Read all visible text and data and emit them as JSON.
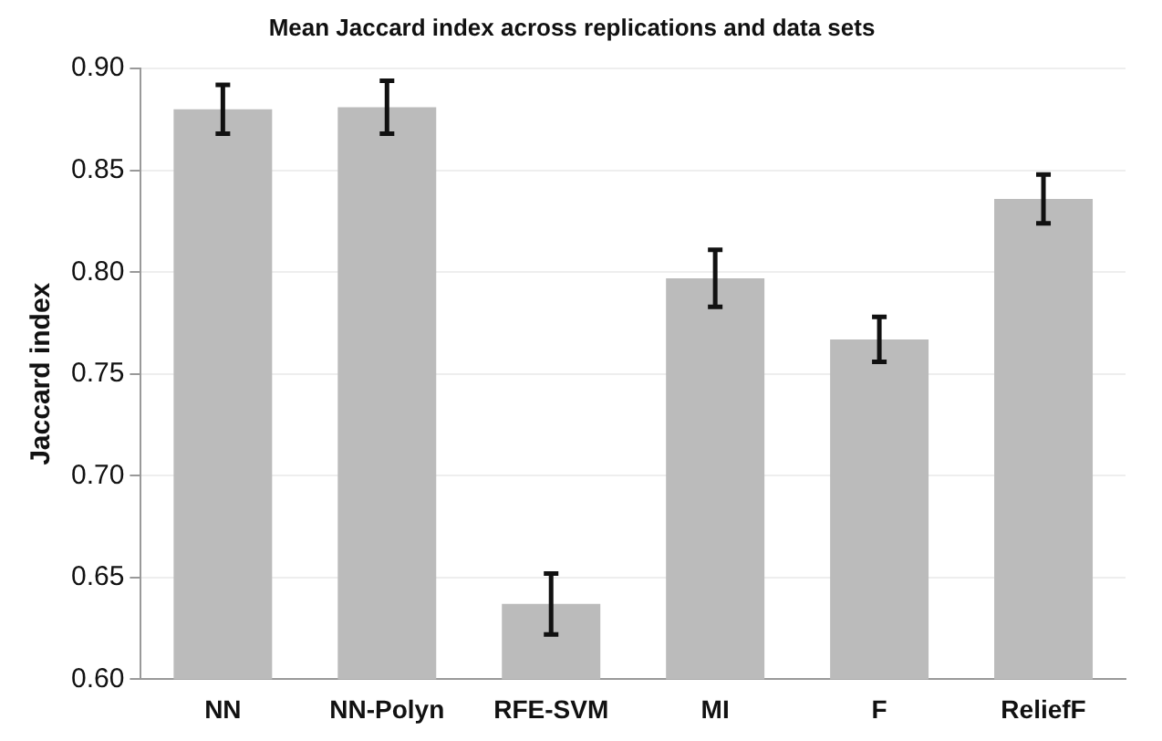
{
  "chart_data": {
    "type": "bar",
    "title": "Mean Jaccard index across replications and data sets",
    "ylabel": "Jaccard index",
    "categories": [
      "NN",
      "NN-Polyn",
      "RFE-SVM",
      "MI",
      "F",
      "ReliefF"
    ],
    "values": [
      0.88,
      0.881,
      0.637,
      0.797,
      0.767,
      0.836
    ],
    "errors": [
      0.012,
      0.013,
      0.015,
      0.014,
      0.011,
      0.012
    ],
    "color": "#bbbbbb",
    "ylim": [
      0.6,
      0.9
    ],
    "yticks": [
      {
        "value": 0.6,
        "label": "0.60"
      },
      {
        "value": 0.65,
        "label": "0.65"
      },
      {
        "value": 0.7,
        "label": "0.70"
      },
      {
        "value": 0.75,
        "label": "0.75"
      },
      {
        "value": 0.8,
        "label": "0.80"
      },
      {
        "value": 0.85,
        "label": "0.85"
      },
      {
        "value": 0.9,
        "label": "0.90"
      }
    ],
    "grid": "y",
    "legend": false
  }
}
